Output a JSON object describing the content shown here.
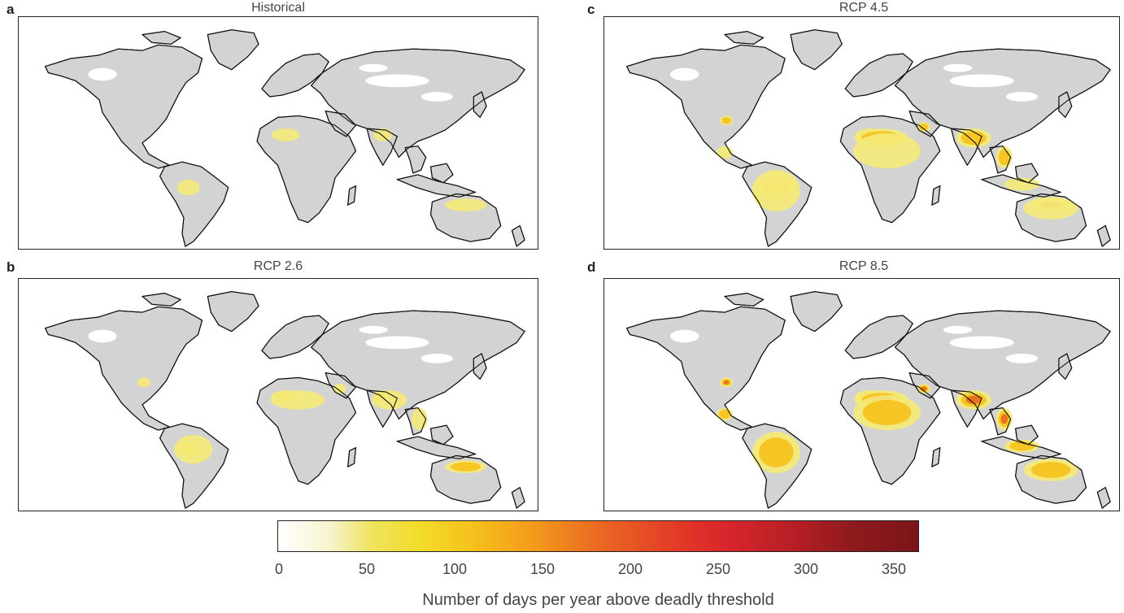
{
  "panels": [
    {
      "letter": "a",
      "title": "Historical",
      "severity": 0
    },
    {
      "letter": "b",
      "title": "RCP 2.6",
      "severity": 1
    },
    {
      "letter": "c",
      "title": "RCP 4.5",
      "severity": 2
    },
    {
      "letter": "d",
      "title": "RCP 8.5",
      "severity": 3
    }
  ],
  "colorbar": {
    "label": "Number of days per year above deadly threshold",
    "ticks": [
      "0",
      "50",
      "100",
      "150",
      "200",
      "250",
      "300",
      "350"
    ],
    "range": [
      0,
      365
    ]
  },
  "colors": {
    "land": "#d3d3d3",
    "coast": "#111111",
    "ocean": "#ffffff"
  }
}
